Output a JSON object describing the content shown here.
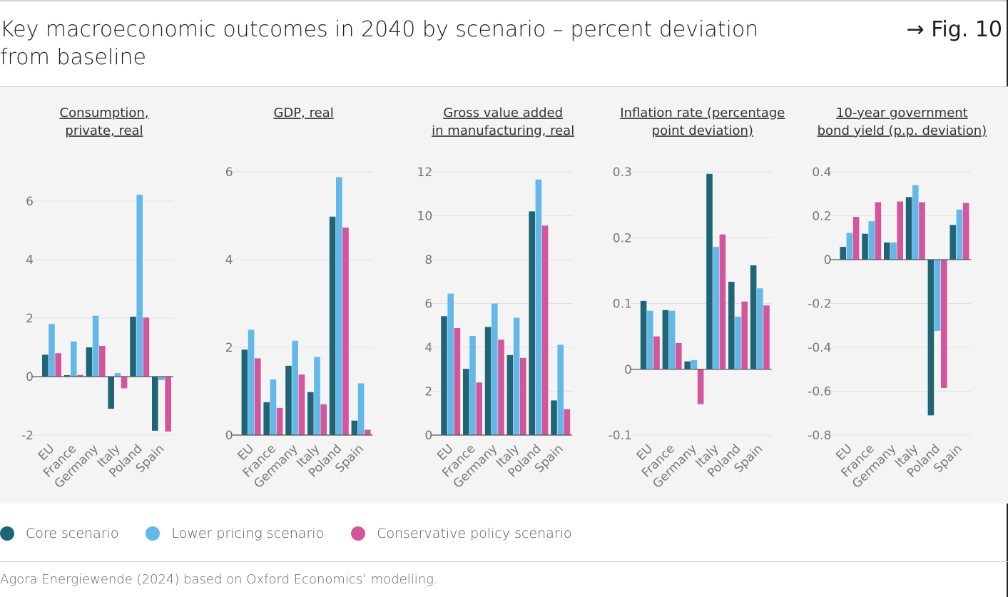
{
  "title": "Key macroeconomic outcomes in 2040 by scenario – percent deviation from baseline",
  "figure_ref": "→ Fig. 10",
  "source": "Agora Energiewende (2024) based on Oxford Economics’ modelling.",
  "colors": {
    "core": "#1f6576",
    "lower": "#62b8e8",
    "conservative": "#d4559b",
    "grid": "#e2e2e2",
    "axis": "#555555",
    "panel": "#f4f4f4"
  },
  "legend": [
    {
      "label": "Core scenario",
      "color": "#1f6576"
    },
    {
      "label": "Lower pricing scenario",
      "color": "#62b8e8"
    },
    {
      "label": "Conservative policy scenario",
      "color": "#d4559b"
    }
  ],
  "chart_data": [
    {
      "type": "bar",
      "title": [
        "Consumption,",
        "private, real"
      ],
      "categories": [
        "EU",
        "France",
        "Germany",
        "Italy",
        "Poland",
        "Spain"
      ],
      "ylim": [
        -2,
        7
      ],
      "yticks": [
        -2,
        0,
        2,
        4,
        6
      ],
      "tick_labels": [
        "-2",
        "0",
        "2",
        "4",
        "6"
      ],
      "series": [
        {
          "name": "Core scenario",
          "values": [
            0.75,
            0.05,
            1.0,
            -1.1,
            2.05,
            -1.85
          ]
        },
        {
          "name": "Lower pricing scenario",
          "values": [
            1.8,
            1.2,
            2.08,
            0.12,
            6.22,
            -0.12
          ]
        },
        {
          "name": "Conservative policy scenario",
          "values": [
            0.8,
            0.06,
            1.05,
            -0.4,
            2.02,
            -1.88
          ]
        }
      ]
    },
    {
      "type": "bar",
      "title": [
        "GDP, real"
      ],
      "categories": [
        "EU",
        "France",
        "Germany",
        "Italy",
        "Poland",
        "Spain"
      ],
      "ylim": [
        0,
        6
      ],
      "yticks": [
        0,
        2,
        4,
        6
      ],
      "tick_labels": [
        "0",
        "2",
        "4",
        "6"
      ],
      "series": [
        {
          "name": "Core scenario",
          "values": [
            1.95,
            0.75,
            1.58,
            0.98,
            4.98,
            0.33
          ]
        },
        {
          "name": "Lower pricing scenario",
          "values": [
            2.4,
            1.27,
            2.15,
            1.78,
            5.88,
            1.18
          ]
        },
        {
          "name": "Conservative policy scenario",
          "values": [
            1.75,
            0.62,
            1.38,
            0.7,
            4.73,
            0.12
          ]
        }
      ]
    },
    {
      "type": "bar",
      "title": [
        "Gross value added",
        "in manufacturing, real"
      ],
      "categories": [
        "EU",
        "France",
        "Germany",
        "Italy",
        "Poland",
        "Spain"
      ],
      "ylim": [
        0,
        12
      ],
      "yticks": [
        0,
        2,
        4,
        6,
        8,
        10,
        12
      ],
      "tick_labels": [
        "0",
        "2",
        "4",
        "6",
        "8",
        "10",
        "12"
      ],
      "series": [
        {
          "name": "Core scenario",
          "values": [
            5.42,
            3.02,
            4.93,
            3.65,
            10.2,
            1.58
          ]
        },
        {
          "name": "Lower pricing scenario",
          "values": [
            6.45,
            4.52,
            6.0,
            5.35,
            11.65,
            4.12
          ]
        },
        {
          "name": "Conservative policy scenario",
          "values": [
            4.88,
            2.4,
            4.35,
            3.52,
            9.55,
            1.18
          ]
        }
      ]
    },
    {
      "type": "bar",
      "title": [
        "Inflation rate (percentage",
        "point deviation)"
      ],
      "categories": [
        "EU",
        "France",
        "Germany",
        "Italy",
        "Poland",
        "Spain"
      ],
      "ylim": [
        -0.1,
        0.3
      ],
      "yticks": [
        -0.1,
        0,
        0.1,
        0.2,
        0.3
      ],
      "tick_labels": [
        "-0.1",
        "0",
        "0.1",
        "0.2",
        "0.3"
      ],
      "series": [
        {
          "name": "Core scenario",
          "values": [
            0.104,
            0.09,
            0.012,
            0.297,
            0.133,
            0.158
          ]
        },
        {
          "name": "Lower pricing scenario",
          "values": [
            0.089,
            0.089,
            0.014,
            0.186,
            0.08,
            0.123
          ]
        },
        {
          "name": "Conservative policy scenario",
          "values": [
            0.05,
            0.04,
            -0.053,
            0.205,
            0.103,
            0.097
          ]
        }
      ]
    },
    {
      "type": "bar",
      "title": [
        "10-year government",
        "bond yield (p.p. deviation)"
      ],
      "categories": [
        "EU",
        "France",
        "Germany",
        "Italy",
        "Poland",
        "Spain"
      ],
      "ylim": [
        -0.8,
        0.4
      ],
      "yticks": [
        -0.8,
        -0.6,
        -0.4,
        -0.2,
        0,
        0.2,
        0.4
      ],
      "tick_labels": [
        "-0.8",
        "-0.6",
        "-0.4",
        "-0.2",
        "0",
        "0.2",
        "0.4"
      ],
      "series": [
        {
          "name": "Core scenario",
          "values": [
            0.058,
            0.118,
            0.078,
            0.285,
            -0.71,
            0.158
          ]
        },
        {
          "name": "Lower pricing scenario",
          "values": [
            0.122,
            0.175,
            0.078,
            0.34,
            -0.325,
            0.228
          ]
        },
        {
          "name": "Conservative policy scenario",
          "values": [
            0.195,
            0.262,
            0.265,
            0.262,
            -0.585,
            0.258
          ]
        }
      ]
    }
  ]
}
